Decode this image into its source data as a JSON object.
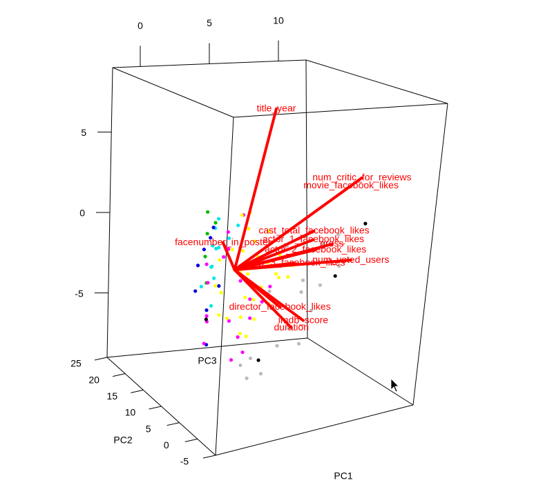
{
  "chart_data": {
    "type": "scatter3d",
    "x_label": "PC1",
    "y_label": "PC2",
    "z_label": "PC3",
    "xlim": [
      -2,
      12
    ],
    "ylim": [
      -5,
      25
    ],
    "zlim": [
      -9,
      9
    ],
    "xticks": [
      0,
      5,
      10
    ],
    "yticks": [
      25,
      20,
      15,
      10,
      5,
      0,
      -5
    ],
    "zticks": [
      5,
      0,
      -5
    ],
    "series": [
      {
        "color": "#bbbbbb",
        "x": [
          2.5,
          3.5,
          4.5,
          5.5,
          6.5,
          7.5,
          3.0,
          4.0,
          5.0,
          2.0,
          6.0,
          1.0,
          3.8,
          4.8,
          2.8,
          0.5,
          7.0,
          3.2
        ],
        "y": [
          0,
          1,
          -1,
          0,
          2,
          1,
          -1,
          0,
          1,
          2,
          0,
          -1,
          1,
          0,
          2,
          -1,
          0,
          1
        ],
        "z": [
          -1.5,
          -2.5,
          -1.0,
          -3.0,
          0.5,
          -0.8,
          -4.5,
          -3.8,
          -2.0,
          -5.5,
          -1.6,
          -6.0,
          0.8,
          -4.8,
          -6.5,
          -5.2,
          1.2,
          -0.3
        ]
      },
      {
        "color": "#00e5ee",
        "x": [
          -1.6,
          -1.2,
          -0.8,
          -1.9,
          -1.4,
          -1.0,
          -0.5,
          -1.7,
          -1.3,
          -0.2,
          -1.5,
          -0.9
        ],
        "y": [
          0,
          1,
          2,
          -1,
          0,
          1,
          0,
          2,
          1,
          -1,
          0,
          1
        ],
        "z": [
          1.5,
          2.3,
          1.0,
          0.5,
          -0.3,
          2.8,
          1.8,
          -1.0,
          0.2,
          2.6,
          -1.8,
          1.2
        ]
      },
      {
        "color": "#0000dd",
        "x": [
          -1.9,
          -1.6,
          -2.0,
          -1.3,
          -1.8,
          -1.5,
          -2.1,
          -1.7
        ],
        "y": [
          1,
          0,
          2,
          -1,
          0,
          1,
          2,
          0
        ],
        "z": [
          1.2,
          2.5,
          0.2,
          -0.6,
          -2.0,
          1.8,
          -1.2,
          -3.9
        ]
      },
      {
        "color": "#00bb00",
        "x": [
          -2.0,
          -1.8,
          -1.5,
          -1.2,
          -1.9
        ],
        "y": [
          0,
          1,
          2,
          1,
          0
        ],
        "z": [
          2.2,
          0.8,
          3.1,
          2.6,
          -0.5
        ]
      },
      {
        "color": "#ff00ff",
        "x": [
          -1.5,
          -0.8,
          0.2,
          1.0,
          -1.8,
          -0.3,
          0.6,
          1.5,
          -1.2,
          2.3,
          -0.5,
          0.9,
          -1.6,
          0.1,
          1.8,
          -1.0,
          -0.2,
          2.8,
          -1.4,
          0.4
        ],
        "y": [
          1,
          0,
          -1,
          2,
          0,
          1,
          -1,
          0,
          2,
          1,
          0,
          -1,
          1,
          0,
          2,
          -1,
          0,
          1,
          2,
          0
        ],
        "z": [
          -2.5,
          0.8,
          -3.6,
          -1.0,
          -0.5,
          2.0,
          -4.5,
          0.3,
          -3.0,
          -2.2,
          1.2,
          -1.6,
          -4.0,
          -5.0,
          -3.2,
          1.5,
          -2.8,
          -1.4,
          0.2,
          3.0
        ]
      },
      {
        "color": "#ffff00",
        "x": [
          0.5,
          1.2,
          2.0,
          -0.3,
          0.8,
          1.7,
          2.5,
          3.1,
          -0.8,
          0.2,
          1.0,
          1.9,
          2.8,
          0.4,
          1.4,
          -0.5,
          0.9,
          2.2,
          3.4,
          1.1,
          0.0,
          1.6,
          2.6,
          -1.0,
          0.6,
          1.3,
          2.1,
          0.3,
          4.0,
          -1.2
        ],
        "y": [
          0,
          1,
          -1,
          2,
          0,
          1,
          -2,
          0,
          1,
          2,
          -1,
          0,
          1,
          0,
          2,
          -1,
          1,
          0,
          -2,
          1,
          0,
          2,
          -1,
          1,
          0,
          -1,
          2,
          0,
          1,
          -1
        ],
        "z": [
          1.0,
          -0.5,
          0.3,
          -1.5,
          2.2,
          -2.0,
          0.8,
          -0.8,
          0.5,
          -3.0,
          1.6,
          -1.2,
          -2.4,
          -0.2,
          2.8,
          1.3,
          -3.8,
          1.9,
          0.1,
          -1.8,
          0.0,
          -4.2,
          -0.4,
          -0.9,
          -2.7,
          0.7,
          -3.3,
          3.0,
          -1.0,
          -2.2
        ]
      },
      {
        "color": "#000000",
        "x": [
          7.0,
          2.3,
          8.5,
          -1.8
        ],
        "y": [
          0,
          1,
          -1,
          0
        ],
        "z": [
          -1.2,
          -5.5,
          1.8,
          -2.5
        ]
      }
    ],
    "loadings": {
      "color": "#ff0000",
      "names": [
        "title_year",
        "num_critic_for_reviews",
        "movie_facebook_likes",
        "facenumber_in_poster",
        "cast_total_facebook_likes",
        "actor_1_facebook_likes",
        "gross",
        "actor_2_facebook_likes",
        "actor_3_facebook_likes",
        "num_voted_users",
        "director_facebook_likes",
        "imdb_score",
        "duration"
      ],
      "x": [
        2.2,
        8.3,
        7.6,
        -0.9,
        5.3,
        5.3,
        6.6,
        5.5,
        4.1,
        8.0,
        3.3,
        5.0,
        4.2
      ],
      "y": [
        0,
        0,
        0,
        0,
        0,
        0,
        0,
        0,
        0,
        0,
        0,
        0,
        0
      ],
      "z": [
        8.8,
        4.4,
        4.0,
        1.6,
        1.6,
        1.1,
        0.7,
        0.5,
        -0.1,
        -0.4,
        -2.5,
        -3.5,
        -3.8
      ]
    }
  }
}
